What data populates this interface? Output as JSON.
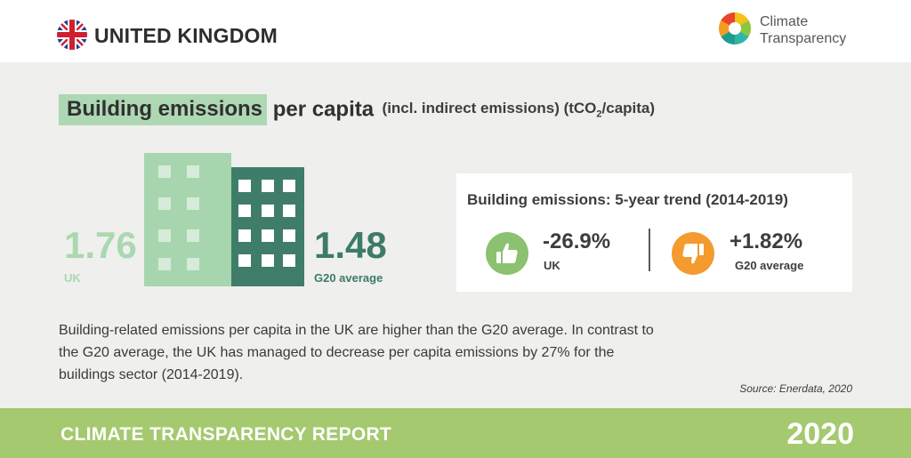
{
  "header": {
    "country": "UNITED KINGDOM",
    "logo_line1": "Climate",
    "logo_line2": "Transparency",
    "flag_icon": "uk-flag-icon"
  },
  "title": {
    "highlight": "Building emissions",
    "rest": " per capita",
    "unit_prefix": "(incl. indirect emissions) (tCO",
    "unit_sub": "2",
    "unit_suffix": "/capita)"
  },
  "comparison": {
    "uk_value": "1.76",
    "uk_label": "UK",
    "g20_value": "1.48",
    "g20_label": "G20 average"
  },
  "trend": {
    "title": "Building emissions: 5-year trend (2014-2019)",
    "uk_value": "-26.9%",
    "uk_label": "UK",
    "uk_icon": "thumbs-up-icon",
    "g20_value": "+1.82%",
    "g20_label": "G20 average",
    "g20_icon": "thumbs-down-icon"
  },
  "description": "Building-related emissions per capita in the UK are higher than the G20 average. In contrast to the G20 average, the UK has managed to decrease per capita emissions by 27% for the buildings sector (2014-2019).",
  "source": "Source: Enerdata, 2020",
  "footer": {
    "title": "CLIMATE TRANSPARENCY REPORT",
    "year": "2020"
  },
  "colors": {
    "uk_green": "#a9d8b1",
    "g20_green": "#3d7b68",
    "positive": "#8bc170",
    "negative": "#f49a2e",
    "footer": "#a5c96f"
  }
}
